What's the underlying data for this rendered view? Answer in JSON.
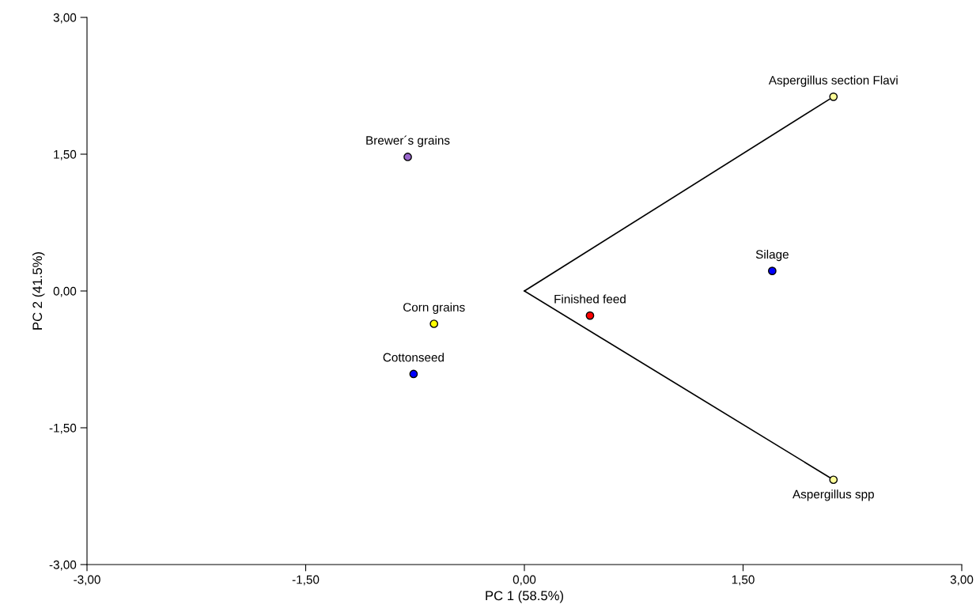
{
  "chart_data": {
    "type": "scatter",
    "xlabel": "PC 1 (58.5%)",
    "ylabel": "PC 2 (41.5%)",
    "xlim": [
      -3,
      3
    ],
    "ylim": [
      -3,
      3
    ],
    "xticks": [
      {
        "value": -3,
        "label": "-3,00"
      },
      {
        "value": -1.5,
        "label": "-1,50"
      },
      {
        "value": 0,
        "label": "0,00"
      },
      {
        "value": 1.5,
        "label": "1,50"
      },
      {
        "value": 3,
        "label": "3,00"
      }
    ],
    "yticks": [
      {
        "value": -3,
        "label": "-3,00"
      },
      {
        "value": -1.5,
        "label": "-1,50"
      },
      {
        "value": 0,
        "label": "0,00"
      },
      {
        "value": 1.5,
        "label": "1,50"
      },
      {
        "value": 3,
        "label": "3,00"
      }
    ],
    "grid": false,
    "legend": false,
    "marker": "circle",
    "series": [
      {
        "type": "line",
        "marker": "none",
        "color": "#000000",
        "x": [
          0,
          2.12
        ],
        "values": [
          0,
          2.13
        ]
      },
      {
        "type": "line",
        "marker": "none",
        "color": "#000000",
        "x": [
          0,
          2.12
        ],
        "values": [
          0,
          -2.07
        ]
      },
      {
        "name": "Aspergillus section Flavi",
        "color": "#ffff99",
        "x": [
          2.12
        ],
        "values": [
          2.13
        ]
      },
      {
        "name": "Aspergillus spp",
        "color": "#ffff99",
        "x": [
          2.12
        ],
        "values": [
          -2.07
        ]
      },
      {
        "name": "Brewer´s grains",
        "color": "#9966cc",
        "x": [
          -0.8
        ],
        "values": [
          1.47
        ]
      },
      {
        "name": "Silage",
        "color": "#0000ff",
        "x": [
          1.7
        ],
        "values": [
          0.22
        ]
      },
      {
        "name": "Finished feed",
        "color": "#ff0000",
        "x": [
          0.45
        ],
        "values": [
          -0.27
        ]
      },
      {
        "name": "Corn grains",
        "color": "#ffff00",
        "x": [
          -0.62
        ],
        "values": [
          -0.36
        ]
      },
      {
        "name": "Cottonseed",
        "color": "#0000ff",
        "x": [
          -0.76
        ],
        "values": [
          -0.91
        ]
      }
    ]
  }
}
